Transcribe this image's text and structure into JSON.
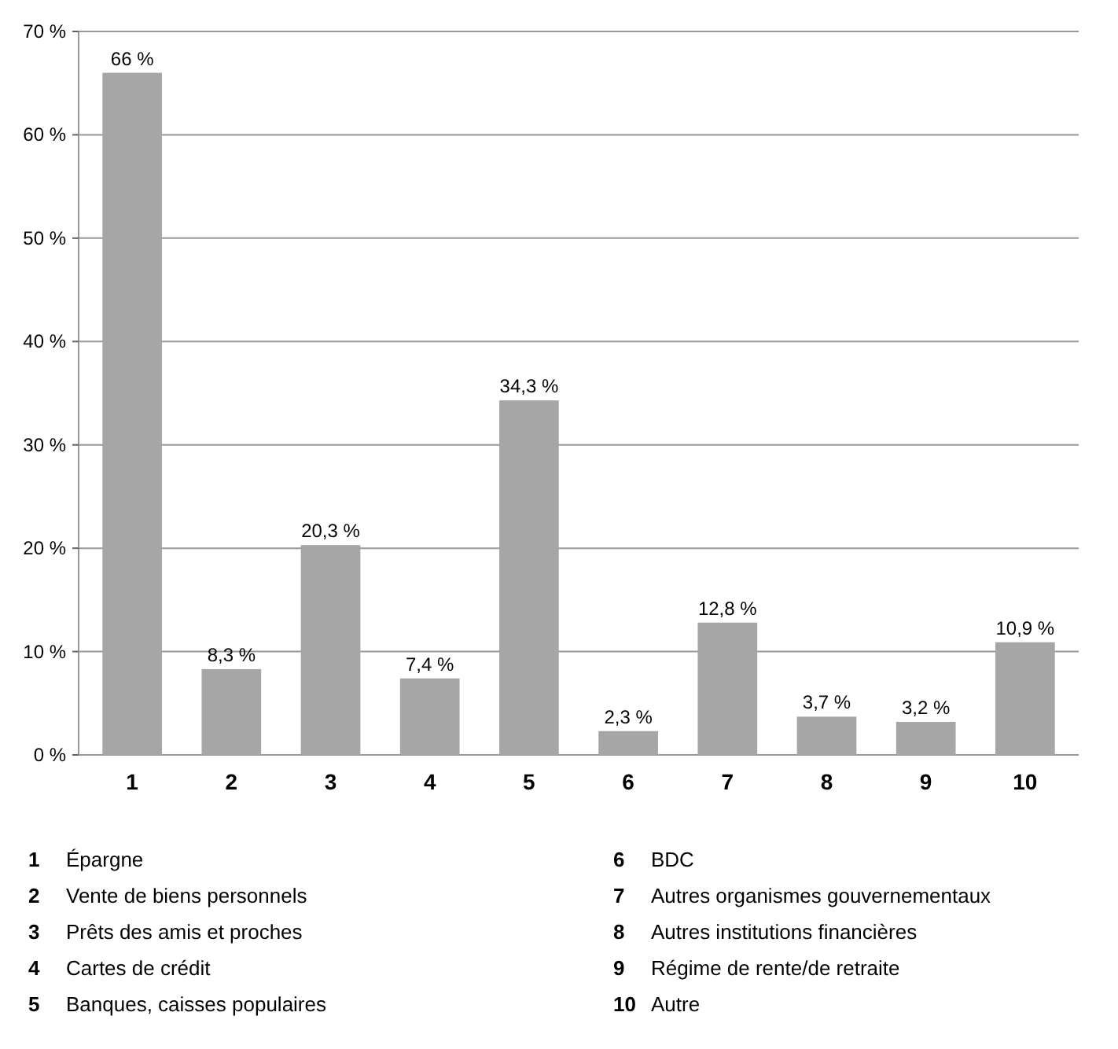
{
  "chart_data": {
    "type": "bar",
    "categories": [
      "1",
      "2",
      "3",
      "4",
      "5",
      "6",
      "7",
      "8",
      "9",
      "10"
    ],
    "values": [
      66,
      8.3,
      20.3,
      7.4,
      34.3,
      2.3,
      12.8,
      3.7,
      3.2,
      10.9
    ],
    "value_labels": [
      "66 %",
      "8,3 %",
      "20,3 %",
      "7,4 %",
      "34,3 %",
      "2,3 %",
      "12,8 %",
      "3,7 %",
      "3,2 %",
      "10,9 %"
    ],
    "color": "#a6a6a6",
    "ylim": [
      0,
      70
    ],
    "yticks": [
      {
        "value": 0,
        "label": "0 %"
      },
      {
        "value": 10,
        "label": "10 %"
      },
      {
        "value": 20,
        "label": "20 %"
      },
      {
        "value": 30,
        "label": "30 %"
      },
      {
        "value": 40,
        "label": "40 %"
      },
      {
        "value": 50,
        "label": "50 %"
      },
      {
        "value": 60,
        "label": "60 %"
      },
      {
        "value": 70,
        "label": "70 %"
      }
    ],
    "grid": "y",
    "annotations": [
      "1 Épargne",
      "2 Vente de biens personnels",
      "3 Prêts des amis et proches",
      "4 Cartes de crédit",
      "5 Banques, caisses populaires",
      "6 BDC",
      "7 Autres organismes gouvernementaux",
      "8 Autres institutions financières",
      "9 Régime de rente/de retraite",
      "10 Autre"
    ]
  }
}
